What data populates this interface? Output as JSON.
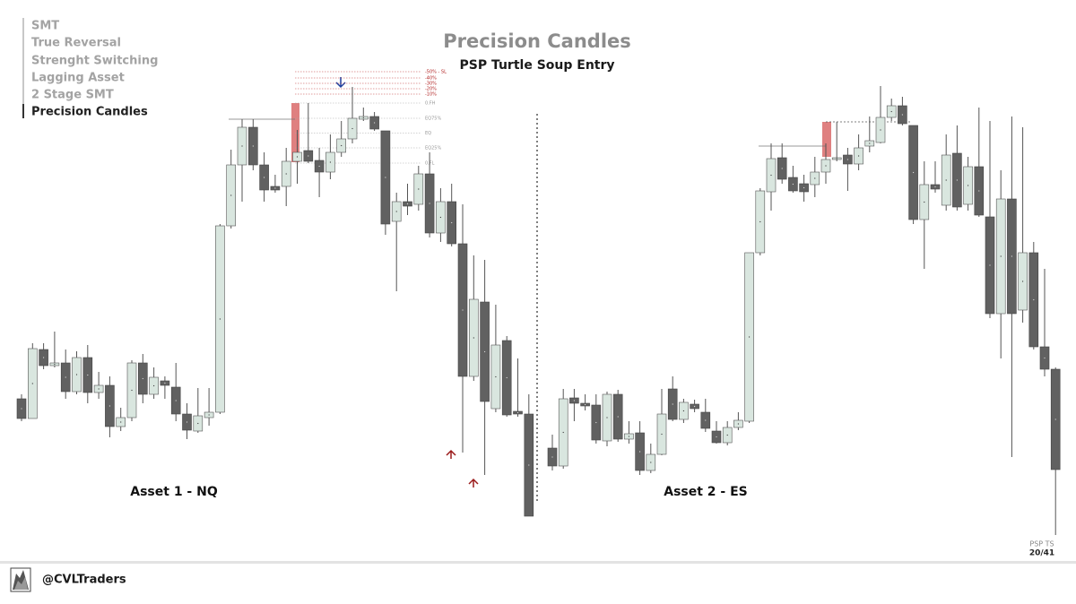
{
  "nav": [
    "SMT",
    "True Reversal",
    "Strenght Switching",
    "Lagging Asset",
    "2 Stage SMT",
    "Precision Candles"
  ],
  "title": "Precision Candles",
  "subtitle": "PSP Turtle Soup Entry",
  "footer": {
    "handle": "@CVLTraders",
    "section": "PSP TS",
    "page": "20/41"
  },
  "chart_data": [
    {
      "type": "candlestick",
      "label": "Asset 1 - NQ",
      "ylim": [
        0,
        104
      ],
      "up_color": "#d9e6df",
      "down_color": "#616161",
      "open": [
        31,
        26.6,
        42,
        38.4,
        39,
        32.6,
        40.2,
        32.4,
        34,
        24.8,
        26.8,
        39,
        32,
        35,
        33.6,
        27.6,
        23.8,
        26.8,
        28,
        69.6,
        83.2,
        91.6,
        83.2,
        78.4,
        78.4,
        84,
        86.4,
        84.2,
        81.6,
        86,
        89,
        93.4,
        94,
        90.8,
        70.6,
        75,
        74.4,
        81.2,
        68,
        75,
        65.6,
        36,
        52.6,
        28.8,
        44,
        28.2,
        27.6
      ],
      "high": [
        32,
        43.4,
        43.4,
        46,
        42,
        41.6,
        43,
        37,
        36,
        29,
        39.6,
        41,
        38,
        36,
        39,
        30,
        33.4,
        33.4,
        70,
        86.6,
        93.4,
        93.4,
        86,
        81,
        87,
        91,
        97,
        87,
        90,
        93,
        100.6,
        96,
        95,
        90.8,
        77,
        79,
        83,
        86,
        78,
        79,
        74.4,
        63,
        62,
        52,
        45,
        40,
        32
      ],
      "low": [
        26,
        26.6,
        37.6,
        38,
        31,
        32,
        30,
        31,
        22.4,
        23.8,
        26,
        30,
        31,
        31,
        26,
        22,
        23.4,
        25,
        27.6,
        69,
        75,
        82,
        75,
        77,
        74,
        79,
        83.6,
        76,
        80,
        85,
        88,
        93,
        90.8,
        67.6,
        55,
        72,
        73,
        67,
        66,
        65,
        19,
        35,
        14,
        28,
        27,
        27,
        4.8
      ],
      "close": [
        26.6,
        42.2,
        38.4,
        39,
        32.6,
        40.2,
        32.4,
        34,
        24.8,
        26.8,
        39,
        32,
        35.8,
        34,
        27.6,
        24,
        27.2,
        28,
        69.6,
        83.2,
        91.6,
        83.2,
        77.6,
        77.6,
        84,
        86,
        84,
        81.6,
        86,
        89,
        93.6,
        94,
        91.2,
        70,
        75,
        74,
        81.2,
        68,
        75,
        65.6,
        36,
        53.2,
        30.4,
        43,
        27.4,
        27.6,
        4.8
      ],
      "levels": [
        {
          "label": "-50% - SL",
          "value": 104
        },
        {
          "label": "-40%",
          "value": 102.6
        },
        {
          "label": "-30%",
          "value": 101.4
        },
        {
          "label": "-20%",
          "value": 100.2
        },
        {
          "label": "-10%",
          "value": 99
        },
        {
          "label": "0.FH",
          "value": 97
        },
        {
          "label": "EQ75%",
          "value": 93.6
        },
        {
          "label": "EQ",
          "value": 90.3
        },
        {
          "label": "EQ25%",
          "value": 87
        },
        {
          "label": "0.FL",
          "value": 83.6
        }
      ]
    },
    {
      "type": "candlestick",
      "label": "Asset 2 - ES",
      "ylim": [
        0,
        104
      ],
      "up_color": "#d9e6df",
      "down_color": "#616161",
      "open": [
        20,
        16,
        31.2,
        30,
        29.6,
        21.6,
        32,
        22,
        23.4,
        15,
        18.6,
        33.2,
        26.4,
        29.8,
        28,
        23.8,
        21.2,
        24.6,
        26,
        63.6,
        77.2,
        84.8,
        80.4,
        79,
        78.8,
        81.6,
        84.4,
        85.4,
        83.4,
        87.4,
        88.2,
        93.8,
        96.4,
        92,
        71,
        78.8,
        74.2,
        85.8,
        74.4,
        82.8,
        71.6,
        50,
        75.6,
        50.8,
        63.6,
        42.6,
        37.6
      ],
      "high": [
        23,
        33.2,
        33.2,
        32,
        32,
        32.6,
        33,
        26,
        26,
        21,
        33.2,
        36,
        31,
        30.8,
        31,
        26,
        26,
        28,
        63.6,
        78,
        88,
        88,
        83,
        81,
        85,
        88,
        92.8,
        87,
        90,
        94,
        100.8,
        98,
        98.4,
        92,
        84,
        84,
        90,
        92,
        85,
        96,
        93,
        82,
        94,
        91.6,
        66,
        60,
        38
      ],
      "low": [
        15,
        15.4,
        26,
        28.4,
        21,
        20.4,
        21.4,
        21,
        14,
        14.4,
        18.4,
        26,
        25.6,
        28,
        23.6,
        21,
        20.6,
        24,
        25.6,
        63,
        73,
        79,
        77,
        75,
        76,
        79,
        84,
        77.4,
        82,
        86,
        88,
        93,
        92,
        70,
        60,
        77,
        73,
        73,
        73,
        71.6,
        49,
        40,
        18,
        48,
        42,
        36,
        0.6
      ],
      "close": [
        16,
        31,
        30,
        29.4,
        21.8,
        32,
        22,
        23.2,
        15,
        18.6,
        27.6,
        26.4,
        30.2,
        28.8,
        24.4,
        21.2,
        24.6,
        26.2,
        63.6,
        77.4,
        84.6,
        80,
        77.4,
        77.2,
        81.6,
        84.4,
        84.8,
        83.4,
        87,
        88.6,
        93.8,
        96.4,
        92.4,
        71,
        78.8,
        77.8,
        85.4,
        73.8,
        82.8,
        72,
        50,
        75.6,
        50,
        63.6,
        42.6,
        37.6,
        15.2
      ]
    }
  ]
}
